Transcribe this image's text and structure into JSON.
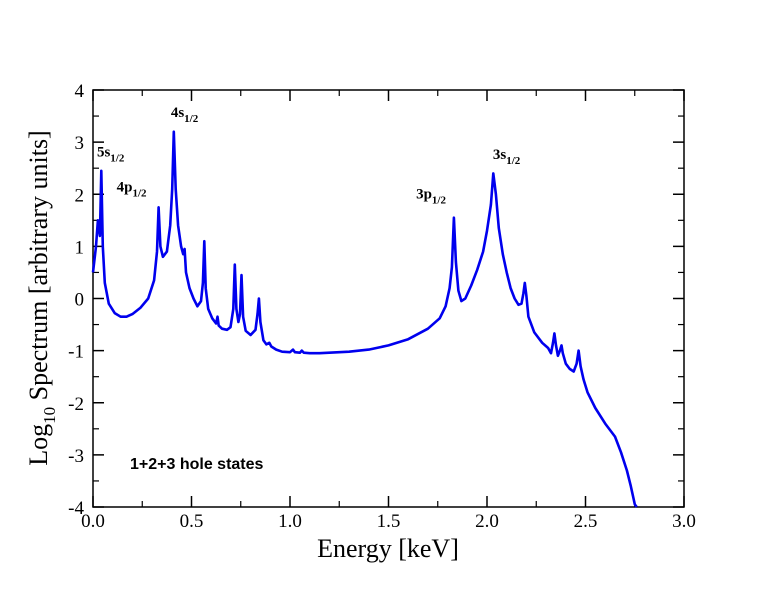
{
  "chart_data": {
    "type": "line",
    "title": "",
    "xlabel": "Energy [keV]",
    "ylabel": {
      "prefix": "Log",
      "subscript": "10",
      "rest": " Spectrum [arbitrary units]"
    },
    "xlim": [
      0,
      3
    ],
    "ylim": [
      -4,
      4
    ],
    "x_ticks": [
      "0.0",
      "0.5",
      "1.0",
      "1.5",
      "2.0",
      "2.5",
      "3.0"
    ],
    "y_ticks": [
      "-4",
      "-3",
      "-2",
      "-1",
      "0",
      "1",
      "2",
      "3",
      "4"
    ],
    "grid": false,
    "annotation": "1+2+3 hole states",
    "series": [
      {
        "name": "spectrum",
        "color": "#0000ee",
        "points": [
          [
            0.0,
            0.5
          ],
          [
            0.015,
            1.0
          ],
          [
            0.025,
            1.5
          ],
          [
            0.035,
            1.2
          ],
          [
            0.042,
            2.45
          ],
          [
            0.05,
            1.0
          ],
          [
            0.06,
            0.3
          ],
          [
            0.08,
            -0.1
          ],
          [
            0.11,
            -0.28
          ],
          [
            0.14,
            -0.35
          ],
          [
            0.17,
            -0.35
          ],
          [
            0.2,
            -0.3
          ],
          [
            0.24,
            -0.18
          ],
          [
            0.28,
            0.0
          ],
          [
            0.31,
            0.35
          ],
          [
            0.325,
            0.9
          ],
          [
            0.333,
            1.75
          ],
          [
            0.342,
            1.0
          ],
          [
            0.355,
            0.8
          ],
          [
            0.375,
            0.9
          ],
          [
            0.392,
            1.4
          ],
          [
            0.402,
            2.1
          ],
          [
            0.41,
            3.2
          ],
          [
            0.42,
            2.1
          ],
          [
            0.432,
            1.4
          ],
          [
            0.447,
            1.0
          ],
          [
            0.458,
            0.85
          ],
          [
            0.465,
            0.95
          ],
          [
            0.472,
            0.5
          ],
          [
            0.49,
            0.2
          ],
          [
            0.51,
            0.0
          ],
          [
            0.53,
            -0.15
          ],
          [
            0.548,
            -0.05
          ],
          [
            0.558,
            0.3
          ],
          [
            0.565,
            1.1
          ],
          [
            0.572,
            0.2
          ],
          [
            0.585,
            -0.2
          ],
          [
            0.605,
            -0.38
          ],
          [
            0.625,
            -0.48
          ],
          [
            0.632,
            -0.35
          ],
          [
            0.638,
            -0.52
          ],
          [
            0.655,
            -0.58
          ],
          [
            0.68,
            -0.6
          ],
          [
            0.698,
            -0.55
          ],
          [
            0.712,
            -0.2
          ],
          [
            0.72,
            0.65
          ],
          [
            0.728,
            -0.2
          ],
          [
            0.738,
            -0.45
          ],
          [
            0.746,
            -0.3
          ],
          [
            0.754,
            0.45
          ],
          [
            0.762,
            -0.35
          ],
          [
            0.775,
            -0.62
          ],
          [
            0.8,
            -0.7
          ],
          [
            0.825,
            -0.6
          ],
          [
            0.835,
            -0.3
          ],
          [
            0.842,
            0.0
          ],
          [
            0.85,
            -0.45
          ],
          [
            0.865,
            -0.8
          ],
          [
            0.88,
            -0.88
          ],
          [
            0.895,
            -0.85
          ],
          [
            0.905,
            -0.92
          ],
          [
            0.93,
            -0.98
          ],
          [
            0.96,
            -1.02
          ],
          [
            1.0,
            -1.03
          ],
          [
            1.015,
            -0.98
          ],
          [
            1.025,
            -1.03
          ],
          [
            1.05,
            -1.04
          ],
          [
            1.06,
            -1.0
          ],
          [
            1.07,
            -1.04
          ],
          [
            1.1,
            -1.05
          ],
          [
            1.15,
            -1.05
          ],
          [
            1.2,
            -1.04
          ],
          [
            1.3,
            -1.02
          ],
          [
            1.4,
            -0.98
          ],
          [
            1.5,
            -0.9
          ],
          [
            1.6,
            -0.78
          ],
          [
            1.7,
            -0.58
          ],
          [
            1.76,
            -0.38
          ],
          [
            1.79,
            -0.15
          ],
          [
            1.81,
            0.2
          ],
          [
            1.822,
            0.6
          ],
          [
            1.832,
            1.55
          ],
          [
            1.842,
            0.7
          ],
          [
            1.855,
            0.15
          ],
          [
            1.87,
            -0.05
          ],
          [
            1.89,
            0.0
          ],
          [
            1.92,
            0.25
          ],
          [
            1.95,
            0.55
          ],
          [
            1.98,
            0.9
          ],
          [
            2.0,
            1.3
          ],
          [
            2.02,
            1.8
          ],
          [
            2.032,
            2.4
          ],
          [
            2.045,
            2.0
          ],
          [
            2.06,
            1.35
          ],
          [
            2.08,
            0.85
          ],
          [
            2.1,
            0.5
          ],
          [
            2.12,
            0.2
          ],
          [
            2.14,
            0.0
          ],
          [
            2.16,
            -0.12
          ],
          [
            2.175,
            -0.1
          ],
          [
            2.185,
            0.1
          ],
          [
            2.192,
            0.3
          ],
          [
            2.2,
            0.05
          ],
          [
            2.21,
            -0.35
          ],
          [
            2.24,
            -0.65
          ],
          [
            2.28,
            -0.85
          ],
          [
            2.31,
            -0.95
          ],
          [
            2.325,
            -1.05
          ],
          [
            2.335,
            -0.85
          ],
          [
            2.342,
            -0.67
          ],
          [
            2.35,
            -0.9
          ],
          [
            2.36,
            -1.1
          ],
          [
            2.37,
            -1.0
          ],
          [
            2.378,
            -0.9
          ],
          [
            2.385,
            -1.05
          ],
          [
            2.4,
            -1.25
          ],
          [
            2.42,
            -1.35
          ],
          [
            2.44,
            -1.4
          ],
          [
            2.455,
            -1.25
          ],
          [
            2.465,
            -1.0
          ],
          [
            2.475,
            -1.3
          ],
          [
            2.49,
            -1.55
          ],
          [
            2.51,
            -1.8
          ],
          [
            2.55,
            -2.1
          ],
          [
            2.6,
            -2.4
          ],
          [
            2.65,
            -2.65
          ],
          [
            2.68,
            -2.95
          ],
          [
            2.71,
            -3.3
          ],
          [
            2.73,
            -3.6
          ],
          [
            2.75,
            -3.95
          ],
          [
            2.76,
            -4.0
          ]
        ]
      }
    ],
    "peak_labels": [
      {
        "base": "5s",
        "sub": "1/2",
        "x": 0.02,
        "y": 2.72
      },
      {
        "base": "4p",
        "sub": "1/2",
        "x": 0.12,
        "y": 2.05
      },
      {
        "base": "4s",
        "sub": "1/2",
        "x": 0.395,
        "y": 3.48
      },
      {
        "base": "3p",
        "sub": "1/2",
        "x": 1.64,
        "y": 1.92
      },
      {
        "base": "3s",
        "sub": "1/2",
        "x": 2.03,
        "y": 2.68
      }
    ]
  }
}
